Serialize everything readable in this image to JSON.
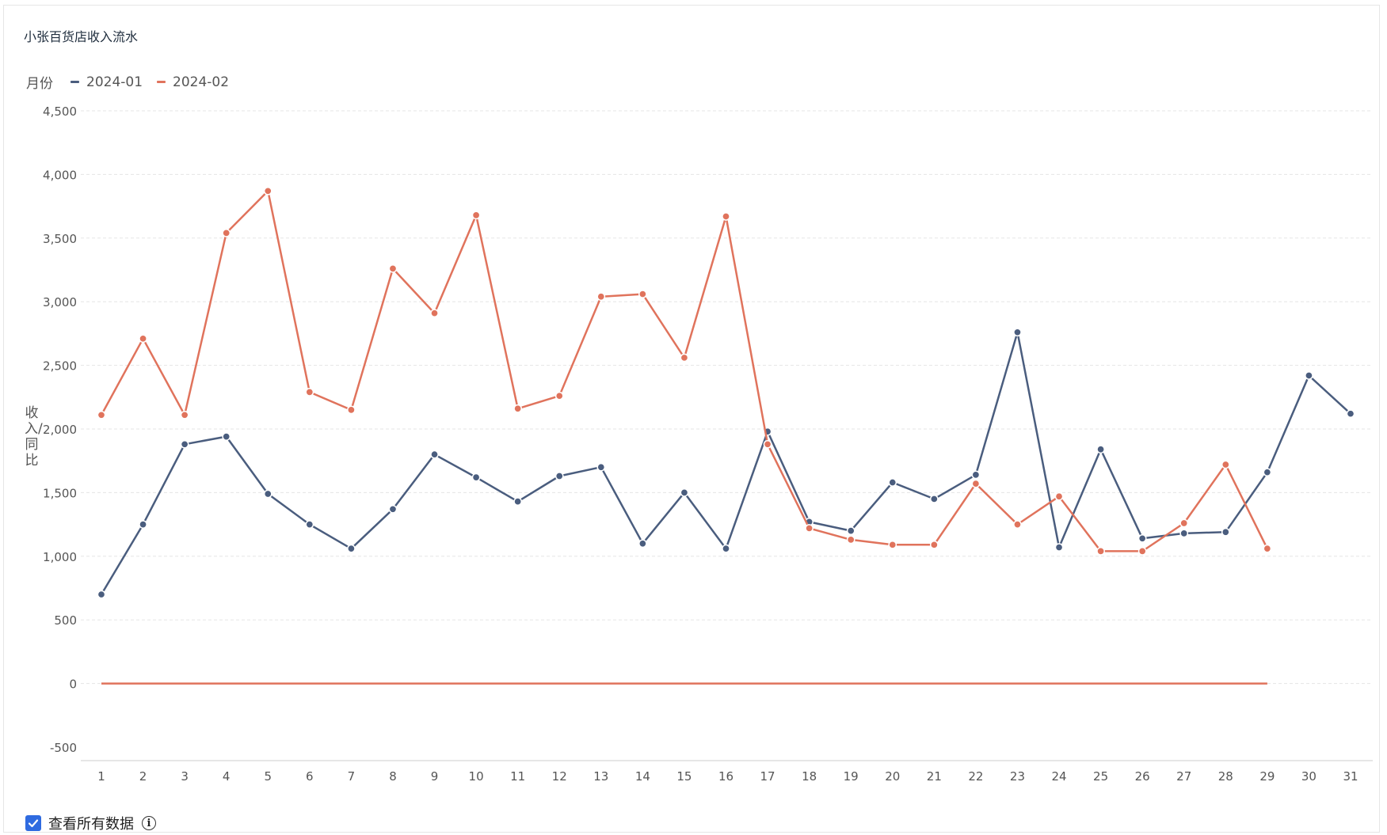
{
  "title": "小张百货店收入流水",
  "legend": {
    "title": "月份"
  },
  "footer": {
    "checkbox_label": "查看所有数据",
    "checkbox_checked": true,
    "info_icon": "info-icon"
  },
  "colors": {
    "series_1": "#4a5d7e",
    "series_2": "#e0735c",
    "grid": "#e5e5e5",
    "axis": "#cccccc"
  },
  "chart_data": {
    "type": "line",
    "title": "小张百货店收入流水",
    "xlabel": "",
    "ylabel": "收入/同比",
    "ylim": [
      -500,
      4500
    ],
    "yticks": [
      -500,
      0,
      500,
      1000,
      1500,
      2000,
      2500,
      3000,
      3500,
      4000,
      4500
    ],
    "ytick_labels": [
      "-500",
      "0",
      "500",
      "1,000",
      "1,500",
      "2,000",
      "2,500",
      "3,000",
      "3,500",
      "4,000",
      "4,500"
    ],
    "legend_position": "top-left",
    "grid": true,
    "x": [
      "1",
      "2",
      "3",
      "4",
      "5",
      "6",
      "7",
      "8",
      "9",
      "10",
      "11",
      "12",
      "13",
      "14",
      "15",
      "16",
      "17",
      "18",
      "19",
      "20",
      "21",
      "22",
      "23",
      "24",
      "25",
      "26",
      "27",
      "28",
      "29",
      "30",
      "31"
    ],
    "series": [
      {
        "name": "2024-01",
        "color": "#4a5d7e",
        "values": [
          700,
          1250,
          1880,
          1940,
          1490,
          1250,
          1060,
          1370,
          1800,
          1620,
          1430,
          1630,
          1700,
          1100,
          1500,
          1060,
          1980,
          1270,
          1200,
          1580,
          1450,
          1640,
          2760,
          1070,
          1840,
          1140,
          1180,
          1190,
          1660,
          2420,
          2120
        ]
      },
      {
        "name": "2024-02",
        "color": "#e0735c",
        "values": [
          2110,
          2710,
          2110,
          3540,
          3870,
          2290,
          2150,
          3260,
          2910,
          3680,
          2160,
          2260,
          3040,
          3060,
          2560,
          3670,
          1880,
          1220,
          1130,
          1090,
          1090,
          1570,
          1250,
          1470,
          1040,
          1040,
          1260,
          1720,
          1060,
          null,
          null
        ]
      },
      {
        "name": "",
        "color": "#e0735c",
        "show_points": false,
        "values": [
          0,
          0,
          0,
          0,
          0,
          0,
          0,
          0,
          0,
          0,
          0,
          0,
          0,
          0,
          0,
          0,
          0,
          0,
          0,
          0,
          0,
          0,
          0,
          0,
          0,
          0,
          0,
          0,
          0,
          null,
          null
        ]
      }
    ]
  }
}
